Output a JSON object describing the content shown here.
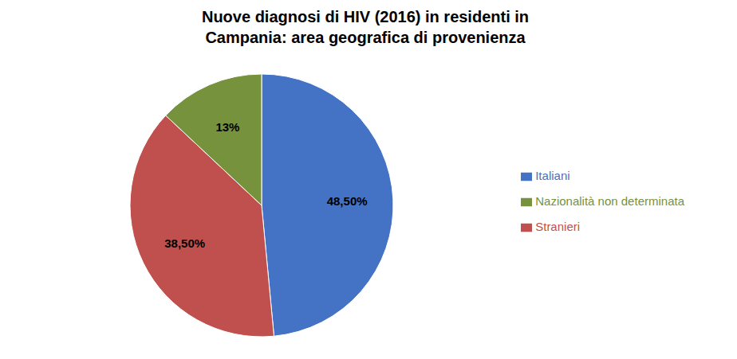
{
  "chart_data": {
    "type": "pie",
    "title": "Nuove diagnosi di HIV (2016) in residenti in\nCampania: area geografica di provenienza",
    "categories": [
      "Italiani",
      "Stranieri",
      "Nazionalità non determinata"
    ],
    "values": [
      48.5,
      38.5,
      13.0
    ],
    "value_labels": [
      "48,50%",
      "38,50%",
      "13%"
    ],
    "colors": [
      "#4472C4",
      "#C0504D",
      "#76923C"
    ],
    "data_labels": true,
    "legend": "right"
  }
}
